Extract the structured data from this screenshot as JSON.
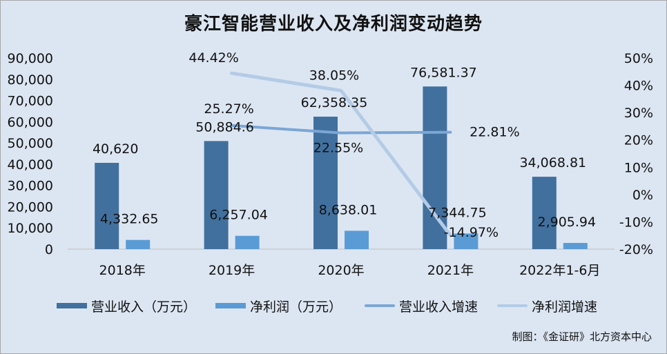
{
  "title": "豪江智能营业收入及净利润变动趋势",
  "source": "制图：《金证研》北方资本中心",
  "colors": {
    "background": "#dce6f2",
    "revenue_bar": "#41709e",
    "profit_bar": "#5b9bd5",
    "revenue_growth_line": "#7ba6d6",
    "profit_growth_line": "#b4cbe6"
  },
  "chart_data": {
    "type": "bar",
    "categories": [
      "2018年",
      "2019年",
      "2020年",
      "2021年",
      "2022年1-6月"
    ],
    "series": [
      {
        "name": "营业收入（万元）",
        "type": "bar",
        "axis": "left",
        "values": [
          40620,
          50884.6,
          62358.35,
          76581.37,
          34068.81
        ],
        "labels": [
          "40,620",
          "50,884.6",
          "62,358.35",
          "76,581.37",
          "34,068.81"
        ]
      },
      {
        "name": "净利润（万元）",
        "type": "bar",
        "axis": "left",
        "values": [
          4332.65,
          6257.04,
          8638.01,
          7344.75,
          2905.94
        ],
        "labels": [
          "4,332.65",
          "6,257.04",
          "8,638.01",
          "7,344.75",
          "2,905.94"
        ]
      },
      {
        "name": "营业收入增速",
        "type": "line",
        "axis": "right",
        "values": [
          null,
          25.27,
          22.55,
          22.81,
          null
        ],
        "labels": [
          "",
          "25.27%",
          "22.55%",
          "22.81%",
          ""
        ]
      },
      {
        "name": "净利润增速",
        "type": "line",
        "axis": "right",
        "values": [
          null,
          44.42,
          38.05,
          -14.97,
          null
        ],
        "labels": [
          "",
          "44.42%",
          "38.05%",
          "-14.97%",
          ""
        ]
      }
    ],
    "y_left": {
      "min": 0,
      "max": 90000,
      "step": 10000,
      "ticks": [
        "0",
        "10,000",
        "20,000",
        "30,000",
        "40,000",
        "50,000",
        "60,000",
        "70,000",
        "80,000",
        "90,000"
      ]
    },
    "y_right": {
      "min": -20,
      "max": 50,
      "step": 10,
      "ticks": [
        "-20%",
        "-10%",
        "0%",
        "10%",
        "20%",
        "30%",
        "40%",
        "50%"
      ]
    },
    "grid": false,
    "legend": "bottom"
  }
}
